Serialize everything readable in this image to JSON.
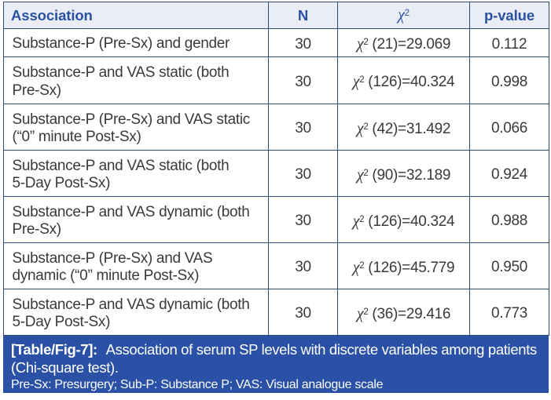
{
  "table": {
    "columns": {
      "association": "Association",
      "n": "N",
      "chi_symbol": "χ",
      "chi_sup": "2",
      "p_value": "p-value"
    },
    "chi_symbol": "χ",
    "chi_sup": "2",
    "rows": [
      {
        "association": "Substance-P (Pre-Sx) and gender",
        "n": "30",
        "chi": " (21)=29.069",
        "p": "0.112"
      },
      {
        "association": "Substance-P and VAS static (both\nPre-Sx)",
        "n": "30",
        "chi": " (126)=40.324",
        "p": "0.998"
      },
      {
        "association": "Substance-P (Pre-Sx) and VAS static\n(“0” minute Post-Sx)",
        "n": "30",
        "chi": " (42)=31.492",
        "p": "0.066"
      },
      {
        "association": "Substance-P and VAS static (both\n5-Day Post-Sx)",
        "n": "30",
        "chi": " (90)=32.189",
        "p": "0.924"
      },
      {
        "association": "Substance-P and VAS dynamic (both\nPre-Sx)",
        "n": "30",
        "chi": " (126)=40.324",
        "p": "0.988"
      },
      {
        "association": "Substance-P (Pre-Sx) and VAS\ndynamic (“0” minute Post-Sx)",
        "n": "30",
        "chi": " (126)=45.779",
        "p": "0.950"
      },
      {
        "association": "Substance-P and VAS dynamic (both\n5-Day Post-Sx)",
        "n": "30",
        "chi": " (36)=29.416",
        "p": "0.773"
      }
    ]
  },
  "caption": {
    "label": "[Table/Fig-7]:",
    "text": " Association of serum SP levels with discrete variables among patients\n(Chi-square test).",
    "footnote": "Pre-Sx: Presurgery; Sub-P: Substance P; VAS: Visual analogue scale"
  },
  "colors": {
    "grid_border": "#2d4b6e",
    "header_background": "#ebedf6",
    "header_text": "#2b52a0",
    "caption_background": "#2a51a5",
    "body_text": "#3a3a3a",
    "caption_text": "#ffffff"
  }
}
